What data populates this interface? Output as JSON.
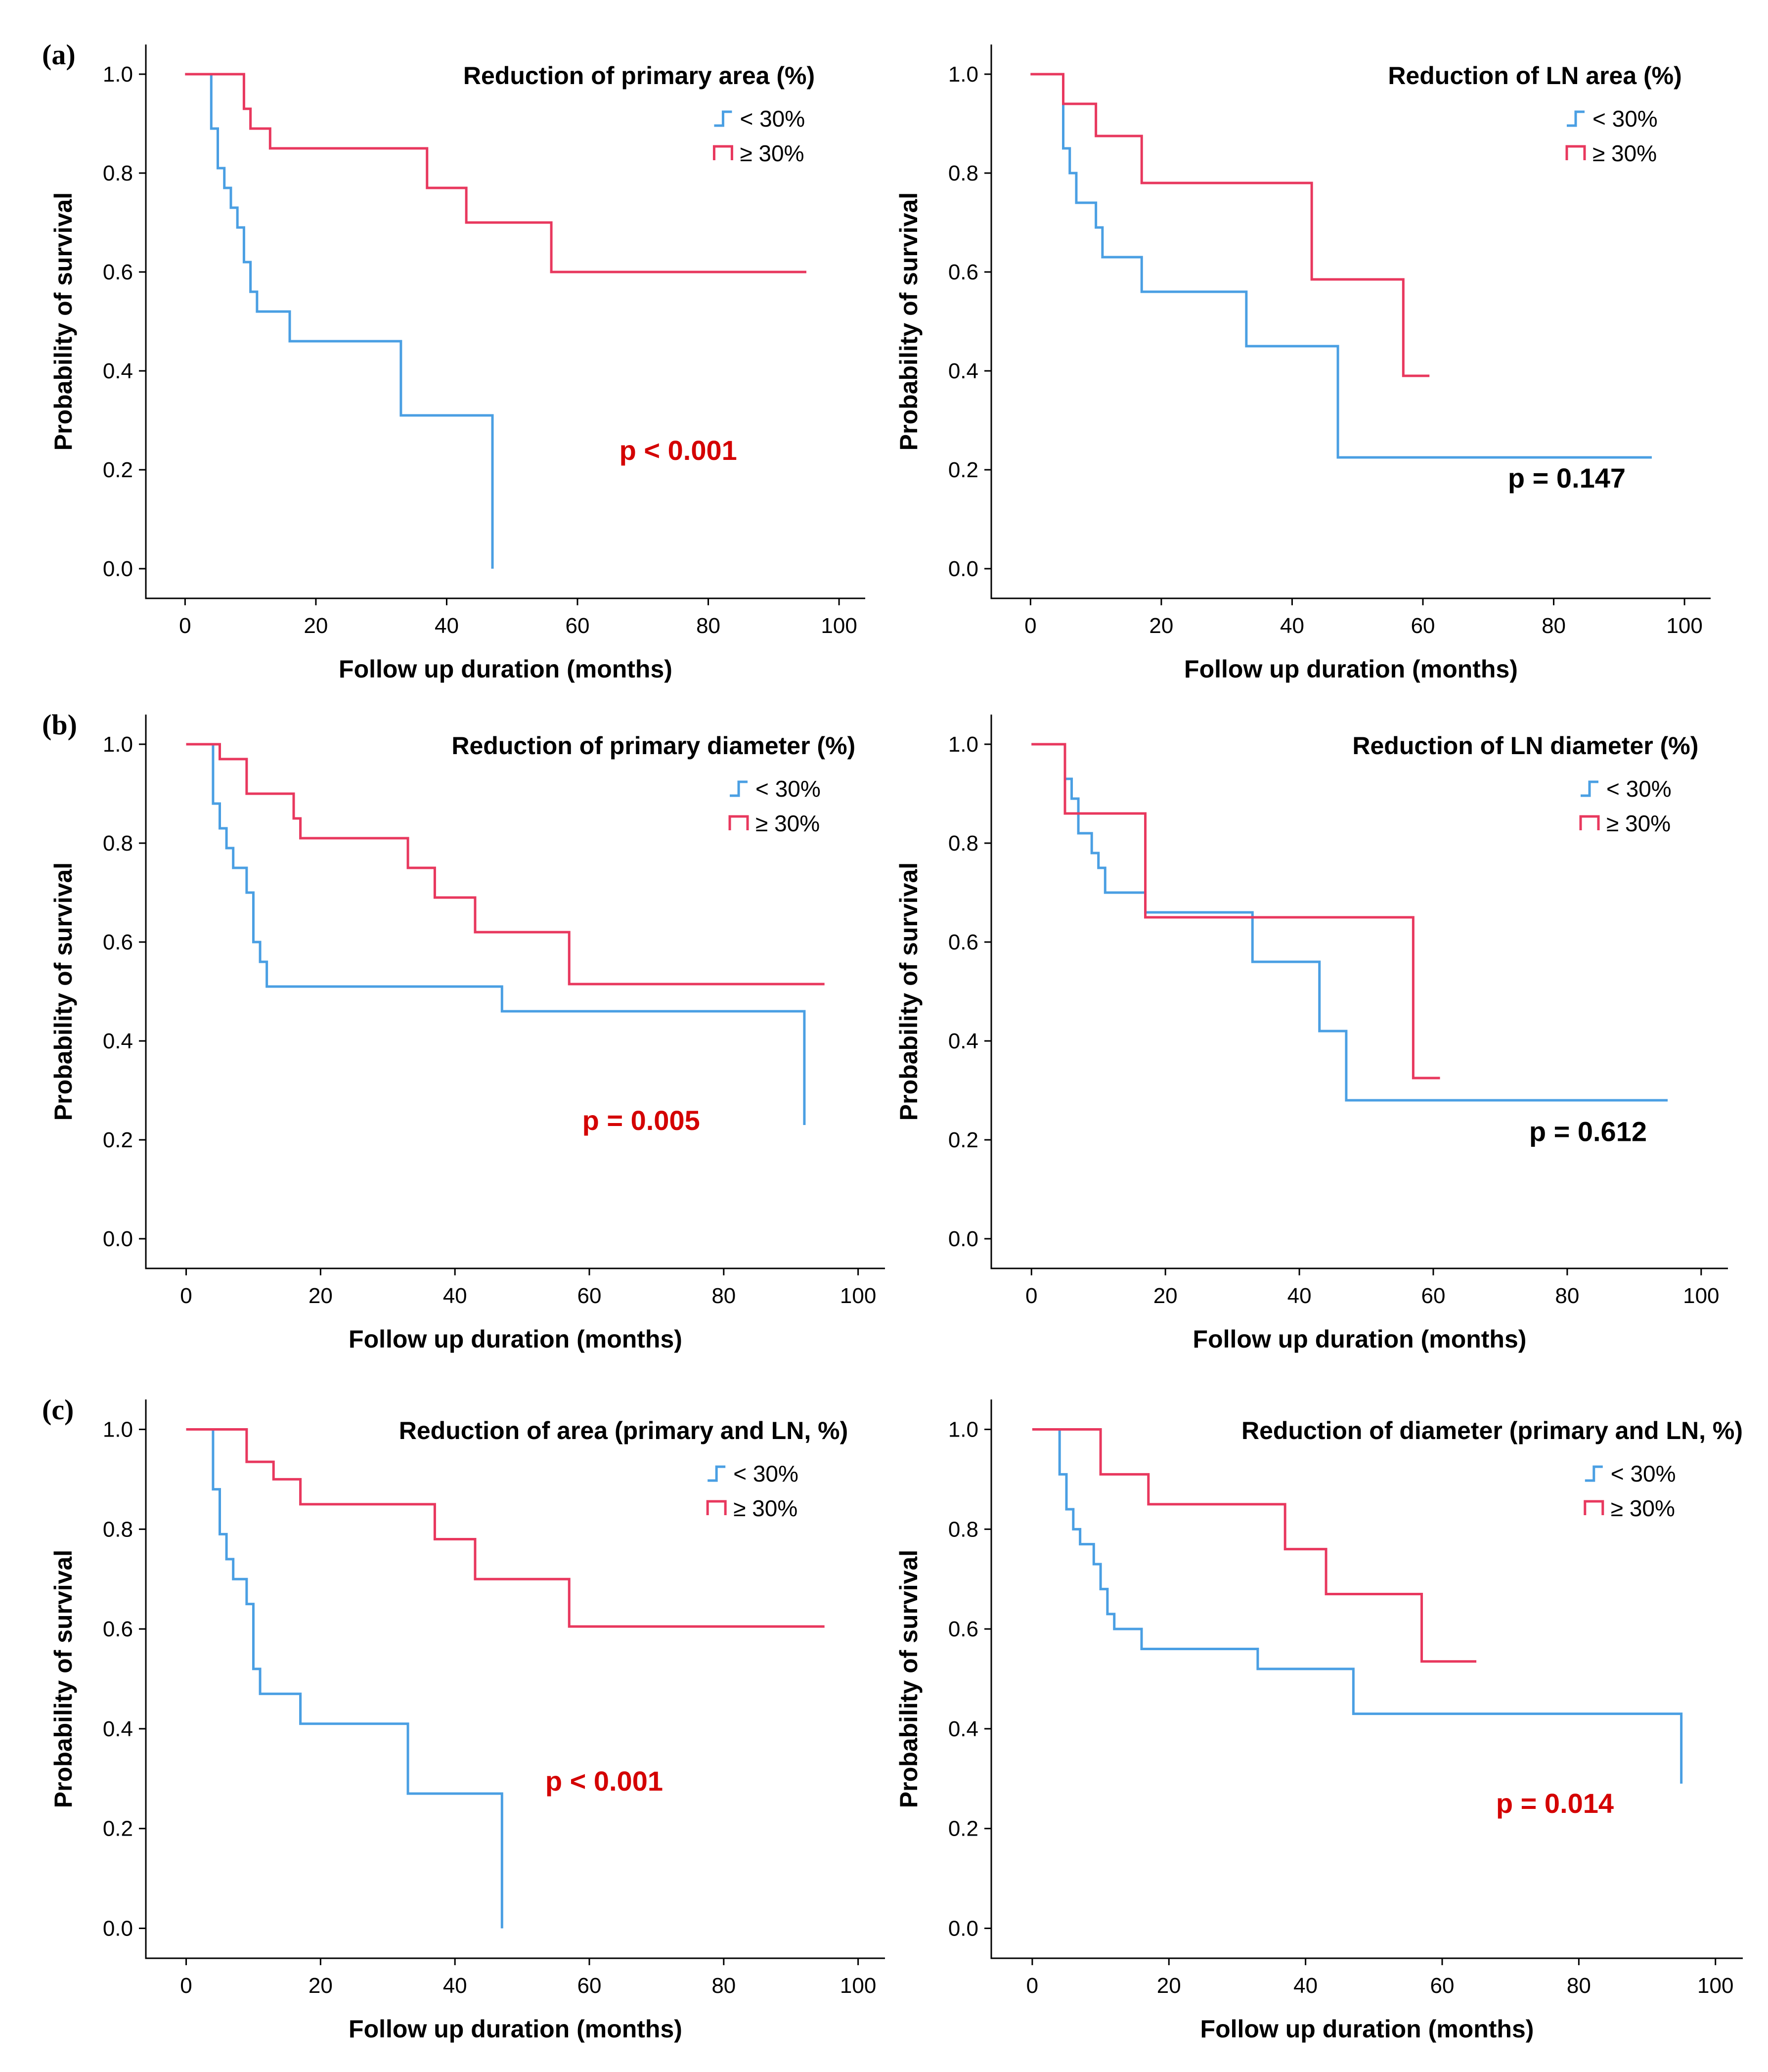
{
  "colors": {
    "lt30": "#4a9fe3",
    "ge30": "#e8385e",
    "sig": "#d40000",
    "nonsig": "#000000"
  },
  "chart_data": [
    {
      "type": "line",
      "panel_label": "(a)",
      "title": "Reduction of primary area (%)",
      "xlabel": "Follow up duration (months)",
      "ylabel": "Probability of survival",
      "xlim": [
        -6,
        104
      ],
      "ylim": [
        -0.06,
        1.06
      ],
      "xticks": [
        "0",
        "20",
        "40",
        "60",
        "80",
        "100"
      ],
      "xtick_values": [
        0,
        20,
        40,
        60,
        80,
        100
      ],
      "yticks": [
        "0.0",
        "0.2",
        "0.4",
        "0.6",
        "0.8",
        "1.0"
      ],
      "ytick_values": [
        0,
        0.2,
        0.4,
        0.6,
        0.8,
        1.0
      ],
      "p_value": "p < 0.001",
      "p_significant": true,
      "series": [
        {
          "name": "< 30%",
          "color_key": "lt30",
          "x": [
            0,
            4,
            5,
            6,
            7,
            8,
            9,
            10,
            11,
            16,
            33,
            47,
            47
          ],
          "y": [
            1.0,
            0.89,
            0.81,
            0.77,
            0.73,
            0.69,
            0.62,
            0.56,
            0.52,
            0.46,
            0.31,
            0.31,
            0.0
          ]
        },
        {
          "name": "≥ 30%",
          "color_key": "ge30",
          "x": [
            0,
            9,
            10,
            13,
            17,
            37,
            43,
            56,
            95
          ],
          "y": [
            1.0,
            0.93,
            0.89,
            0.85,
            0.85,
            0.77,
            0.7,
            0.6,
            0.6
          ]
        }
      ]
    },
    {
      "type": "line",
      "panel_label": "",
      "title": "Reduction of LN area (%)",
      "xlabel": "Follow up duration (months)",
      "ylabel": "Probability of survival",
      "xlim": [
        -6,
        104
      ],
      "ylim": [
        -0.06,
        1.06
      ],
      "xticks": [
        "0",
        "20",
        "40",
        "60",
        "80",
        "100"
      ],
      "xtick_values": [
        0,
        20,
        40,
        60,
        80,
        100
      ],
      "yticks": [
        "0.0",
        "0.2",
        "0.4",
        "0.6",
        "0.8",
        "1.0"
      ],
      "ytick_values": [
        0,
        0.2,
        0.4,
        0.6,
        0.8,
        1.0
      ],
      "p_value": "p = 0.147",
      "p_significant": false,
      "series": [
        {
          "name": "< 30%",
          "color_key": "lt30",
          "x": [
            0,
            5,
            6,
            7,
            10,
            11,
            17,
            33,
            47,
            95
          ],
          "y": [
            1.0,
            0.85,
            0.8,
            0.74,
            0.69,
            0.63,
            0.56,
            0.45,
            0.225,
            0.225
          ]
        },
        {
          "name": "≥ 30%",
          "color_key": "ge30",
          "x": [
            0,
            5,
            10,
            17,
            43,
            57,
            61
          ],
          "y": [
            1.0,
            0.94,
            0.875,
            0.78,
            0.585,
            0.39,
            0.39
          ]
        }
      ]
    },
    {
      "type": "line",
      "panel_label": "(b)",
      "title": "Reduction of primary diameter (%)",
      "xlabel": "Follow up duration (months)",
      "ylabel": "Probability of survival",
      "xlim": [
        -6,
        104
      ],
      "ylim": [
        -0.06,
        1.06
      ],
      "xticks": [
        "0",
        "20",
        "40",
        "60",
        "80",
        "100"
      ],
      "xtick_values": [
        0,
        20,
        40,
        60,
        80,
        100
      ],
      "yticks": [
        "0.0",
        "0.2",
        "0.4",
        "0.6",
        "0.8",
        "1.0"
      ],
      "ytick_values": [
        0,
        0.2,
        0.4,
        0.6,
        0.8,
        1.0
      ],
      "p_value": "p = 0.005",
      "p_significant": true,
      "series": [
        {
          "name": "< 30%",
          "color_key": "lt30",
          "x": [
            0,
            4,
            5,
            6,
            7,
            9,
            10,
            11,
            12,
            47,
            92
          ],
          "y": [
            1.0,
            0.88,
            0.83,
            0.79,
            0.75,
            0.7,
            0.6,
            0.56,
            0.51,
            0.46,
            0.23
          ]
        },
        {
          "name": "≥ 30%",
          "color_key": "ge30",
          "x": [
            0,
            5,
            9,
            16,
            17,
            33,
            37,
            43,
            57,
            95
          ],
          "y": [
            1.0,
            0.97,
            0.9,
            0.85,
            0.81,
            0.75,
            0.69,
            0.62,
            0.515,
            0.515
          ]
        }
      ]
    },
    {
      "type": "line",
      "panel_label": "",
      "title": "Reduction of LN diameter (%)",
      "xlabel": "Follow up duration (months)",
      "ylabel": "Probability of survival",
      "xlim": [
        -6,
        104
      ],
      "ylim": [
        -0.06,
        1.06
      ],
      "xticks": [
        "0",
        "20",
        "40",
        "60",
        "80",
        "100"
      ],
      "xtick_values": [
        0,
        20,
        40,
        60,
        80,
        100
      ],
      "yticks": [
        "0.0",
        "0.2",
        "0.4",
        "0.6",
        "0.8",
        "1.0"
      ],
      "ytick_values": [
        0,
        0.2,
        0.4,
        0.6,
        0.8,
        1.0
      ],
      "p_value": "p = 0.612",
      "p_significant": false,
      "series": [
        {
          "name": "< 30%",
          "color_key": "lt30",
          "x": [
            0,
            5,
            6,
            7,
            9,
            10,
            11,
            17,
            33,
            43,
            47,
            95
          ],
          "y": [
            1.0,
            0.93,
            0.89,
            0.82,
            0.78,
            0.75,
            0.7,
            0.66,
            0.56,
            0.42,
            0.28,
            0.28
          ]
        },
        {
          "name": "≥ 30%",
          "color_key": "ge30",
          "x": [
            0,
            5,
            17,
            57,
            61
          ],
          "y": [
            1.0,
            0.86,
            0.65,
            0.325,
            0.325
          ]
        }
      ]
    },
    {
      "type": "line",
      "panel_label": "(c)",
      "title": "Reduction of area (primary and LN, %)",
      "xlabel": "Follow up duration (months)",
      "ylabel": "Probability of survival",
      "xlim": [
        -6,
        104
      ],
      "ylim": [
        -0.06,
        1.06
      ],
      "xticks": [
        "0",
        "20",
        "40",
        "60",
        "80",
        "100"
      ],
      "xtick_values": [
        0,
        20,
        40,
        60,
        80,
        100
      ],
      "yticks": [
        "0.0",
        "0.2",
        "0.4",
        "0.6",
        "0.8",
        "1.0"
      ],
      "ytick_values": [
        0,
        0.2,
        0.4,
        0.6,
        0.8,
        1.0
      ],
      "p_value": "p < 0.001",
      "p_significant": true,
      "series": [
        {
          "name": "< 30%",
          "color_key": "lt30",
          "x": [
            0,
            4,
            5,
            6,
            7,
            9,
            10,
            11,
            17,
            33,
            47,
            47
          ],
          "y": [
            1.0,
            0.88,
            0.79,
            0.74,
            0.7,
            0.65,
            0.52,
            0.47,
            0.41,
            0.27,
            0.27,
            0.0
          ]
        },
        {
          "name": "≥ 30%",
          "color_key": "ge30",
          "x": [
            0,
            9,
            13,
            17,
            37,
            43,
            57,
            95
          ],
          "y": [
            1.0,
            0.935,
            0.9,
            0.85,
            0.78,
            0.7,
            0.605,
            0.605
          ]
        }
      ]
    },
    {
      "type": "line",
      "panel_label": "",
      "title": "Reduction of diameter (primary and LN, %)",
      "xlabel": "Follow up duration (months)",
      "ylabel": "Probability of survival",
      "xlim": [
        -6,
        104
      ],
      "ylim": [
        -0.06,
        1.06
      ],
      "xticks": [
        "0",
        "20",
        "40",
        "60",
        "80",
        "100"
      ],
      "xtick_values": [
        0,
        20,
        40,
        60,
        80,
        100
      ],
      "yticks": [
        "0.0",
        "0.2",
        "0.4",
        "0.6",
        "0.8",
        "1.0"
      ],
      "ytick_values": [
        0,
        0.2,
        0.4,
        0.6,
        0.8,
        1.0
      ],
      "p_value": "p = 0.014",
      "p_significant": true,
      "series": [
        {
          "name": "< 30%",
          "color_key": "lt30",
          "x": [
            0,
            4,
            5,
            6,
            7,
            9,
            10,
            11,
            12,
            16,
            33,
            47,
            95
          ],
          "y": [
            1.0,
            0.91,
            0.84,
            0.8,
            0.77,
            0.73,
            0.68,
            0.63,
            0.6,
            0.56,
            0.52,
            0.43,
            0.29
          ]
        },
        {
          "name": "≥ 30%",
          "color_key": "ge30",
          "x": [
            0,
            10,
            17,
            37,
            43,
            57,
            65
          ],
          "y": [
            1.0,
            0.91,
            0.85,
            0.76,
            0.67,
            0.535,
            0.535
          ]
        }
      ]
    }
  ]
}
